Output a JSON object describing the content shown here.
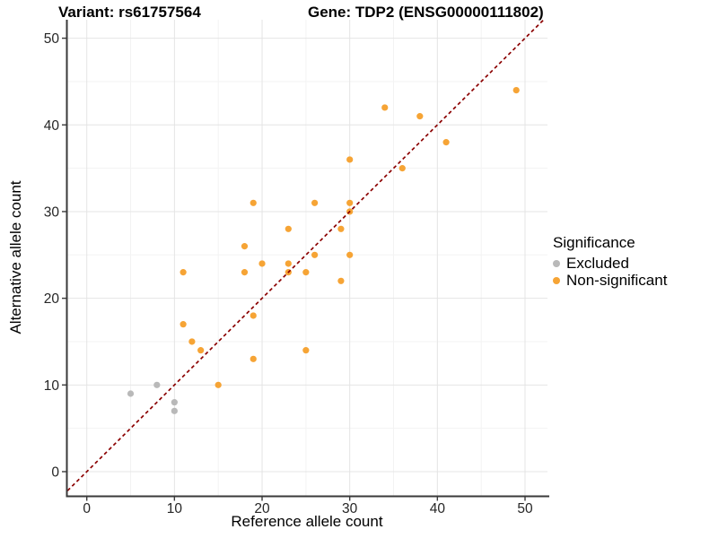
{
  "chart_data": {
    "type": "scatter",
    "title_left": "Variant: rs61757564",
    "title_right": "Gene: TDP2 (ENSG00000111802)",
    "xlabel": "Reference allele count",
    "ylabel": "Alternative allele count",
    "xticks": [
      0,
      10,
      20,
      30,
      40,
      50
    ],
    "yticks": [
      0,
      10,
      20,
      30,
      40,
      50
    ],
    "xlim": [
      -2.2,
      52.2
    ],
    "ylim": [
      -2.8,
      52.1
    ],
    "grid": true,
    "legend": {
      "title": "Significance",
      "position": "right",
      "items": [
        {
          "label": "Excluded",
          "color": "#b9b9b9"
        },
        {
          "label": "Non-significant",
          "color": "#f6a435"
        }
      ]
    },
    "identity_line": {
      "type": "dashed",
      "color": "#8b0000",
      "slope": 1,
      "intercept": 0
    },
    "series": [
      {
        "name": "Excluded",
        "color": "#b9b9b9",
        "points": [
          [
            5,
            9
          ],
          [
            8,
            10
          ],
          [
            10,
            7
          ],
          [
            10,
            8
          ]
        ]
      },
      {
        "name": "Non-significant",
        "color": "#f6a435",
        "points": [
          [
            11,
            17
          ],
          [
            11,
            23
          ],
          [
            12,
            15
          ],
          [
            13,
            14
          ],
          [
            15,
            10
          ],
          [
            18,
            23
          ],
          [
            18,
            26
          ],
          [
            19,
            13
          ],
          [
            19,
            18
          ],
          [
            19,
            31
          ],
          [
            20,
            24
          ],
          [
            23,
            23
          ],
          [
            23,
            24
          ],
          [
            23,
            28
          ],
          [
            25,
            14
          ],
          [
            25,
            23
          ],
          [
            26,
            25
          ],
          [
            26,
            31
          ],
          [
            29,
            22
          ],
          [
            29,
            28
          ],
          [
            30,
            25
          ],
          [
            30,
            30
          ],
          [
            30,
            31
          ],
          [
            30,
            36
          ],
          [
            34,
            42
          ],
          [
            36,
            35
          ],
          [
            38,
            41
          ],
          [
            41,
            38
          ],
          [
            49,
            44
          ]
        ]
      }
    ],
    "colors": {
      "grid_major": "#e4e4e4",
      "grid_minor": "#f3f3f3",
      "axis": "#3a3a3a",
      "tick_text": "#262626"
    }
  }
}
